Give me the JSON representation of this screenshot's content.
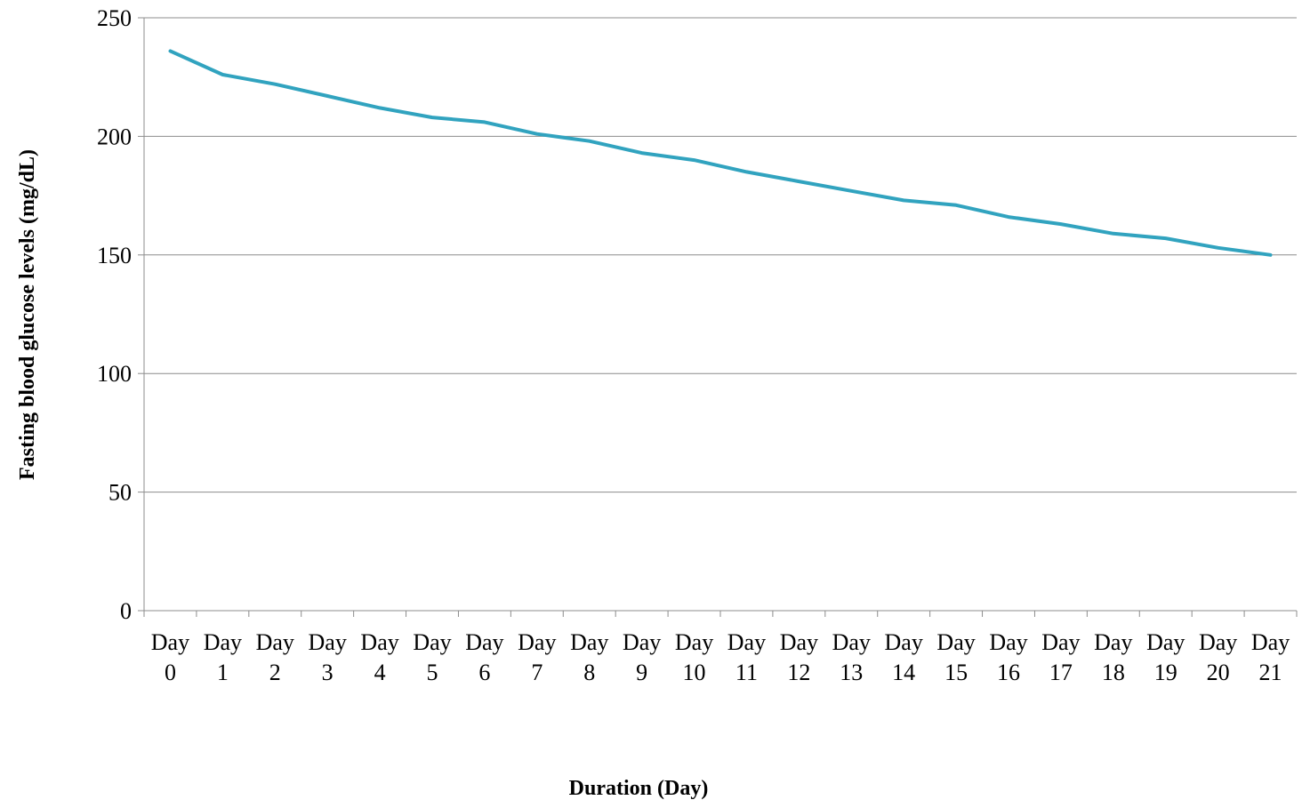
{
  "chart_data": {
    "type": "line",
    "title": "",
    "xlabel": "Duration (Day)",
    "ylabel": "Fasting blood glucose levels (mg/dL)",
    "categories": [
      [
        "Day",
        "0"
      ],
      [
        "Day",
        "1"
      ],
      [
        "Day",
        "2"
      ],
      [
        "Day",
        "3"
      ],
      [
        "Day",
        "4"
      ],
      [
        "Day",
        "5"
      ],
      [
        "Day",
        "6"
      ],
      [
        "Day",
        "7"
      ],
      [
        "Day",
        "8"
      ],
      [
        "Day",
        "9"
      ],
      [
        "Day",
        "10"
      ],
      [
        "Day",
        "11"
      ],
      [
        "Day",
        "12"
      ],
      [
        "Day",
        "13"
      ],
      [
        "Day",
        "14"
      ],
      [
        "Day",
        "15"
      ],
      [
        "Day",
        "16"
      ],
      [
        "Day",
        "17"
      ],
      [
        "Day",
        "18"
      ],
      [
        "Day",
        "19"
      ],
      [
        "Day",
        "20"
      ],
      [
        "Day",
        "21"
      ]
    ],
    "series": [
      {
        "values": [
          236,
          226,
          222,
          217,
          212,
          208,
          206,
          201,
          198,
          193,
          190,
          185,
          181,
          177,
          173,
          171,
          166,
          163,
          159,
          157,
          153,
          150
        ],
        "color": "#31a3bf"
      }
    ],
    "ylim": [
      0,
      250
    ],
    "yticks": [
      0,
      50,
      100,
      150,
      200,
      250
    ],
    "grid": true,
    "legend": "none"
  }
}
